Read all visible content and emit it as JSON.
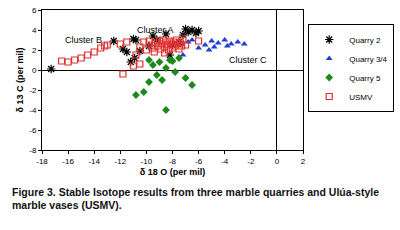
{
  "chart_data": {
    "type": "scatter",
    "caption": "Figure 3.  Stable Isotope results from three marble quarries and Ulúa-style marble vases (USMV).",
    "x_label": "δ 18 O (per mil)",
    "y_label": "δ 13 C (per mil)",
    "xlim": [
      -18,
      2
    ],
    "xticks": [
      -18,
      -16,
      -14,
      -12,
      -10,
      -8,
      -6,
      -4,
      -2,
      0,
      2
    ],
    "ylim": [
      -8,
      6
    ],
    "yticks": [
      -8,
      -6,
      -4,
      -2,
      0,
      2,
      4,
      6
    ],
    "grid": false,
    "legend": "right",
    "annotations": [
      {
        "text": "Cluster A",
        "x": -9.3,
        "y": 4.0
      },
      {
        "text": "Cluster B",
        "x": -14.8,
        "y": 3.0
      },
      {
        "text": "Cluster C",
        "x": -2.2,
        "y": 1.0
      }
    ],
    "series": [
      {
        "name": "Quarry 2",
        "color": "#000000",
        "marker": "asterisk",
        "x": [
          -17.3,
          -12.5,
          -11.8,
          -11.5,
          -11.2,
          -10.9,
          -10.5,
          -10.8,
          -9.5,
          -9.2,
          -8.5,
          -8.0,
          -7.5,
          -7.2,
          -6.8,
          -6.5,
          -6.2,
          -6.0,
          -8.2,
          -9.8,
          -11.0,
          -7.0
        ],
        "y": [
          0.1,
          2.9,
          2.1,
          1.8,
          0.8,
          1.2,
          1.9,
          3.0,
          3.4,
          3.0,
          3.6,
          2.5,
          2.8,
          3.5,
          3.8,
          4.0,
          3.7,
          3.9,
          1.5,
          2.4,
          3.1,
          4.1
        ]
      },
      {
        "name": "Quarry 3/4",
        "color": "#1f3fd0",
        "marker": "triangle",
        "x": [
          -6.5,
          -5.5,
          -5.0,
          -4.5,
          -4.0,
          -3.5,
          -3.0,
          -2.5,
          -6.0,
          -5.2,
          -7.2,
          -4.8,
          -3.8,
          -6.8
        ],
        "y": [
          3.0,
          2.5,
          2.9,
          2.7,
          3.0,
          2.6,
          2.8,
          2.6,
          2.2,
          2.0,
          1.5,
          2.3,
          2.4,
          2.8
        ]
      },
      {
        "name": "Quarry 5",
        "color": "#1a8a1a",
        "marker": "diamond",
        "x": [
          -9.8,
          -9.5,
          -9.0,
          -8.5,
          -8.0,
          -7.5,
          -9.2,
          -9.8,
          -10.2,
          -10.8,
          -8.5,
          -7.0,
          -6.5,
          -8.8,
          -7.8,
          -8.2
        ],
        "y": [
          1.0,
          0.5,
          0.8,
          0.2,
          0.9,
          1.2,
          -0.5,
          -1.2,
          -2.2,
          -2.5,
          -4.0,
          -0.8,
          -1.5,
          -1.0,
          -0.2,
          1.0
        ]
      },
      {
        "name": "USMV",
        "color": "#e03030",
        "marker": "square-open",
        "x": [
          -16.5,
          -16.0,
          -15.5,
          -15.0,
          -14.5,
          -14.0,
          -13.5,
          -13.2,
          -13.0,
          -12.0,
          -11.5,
          -11.8,
          -11.0,
          -10.5,
          -10.5,
          -10.2,
          -10.0,
          -9.8,
          -9.6,
          -9.5,
          -9.3,
          -9.1,
          -9.0,
          -8.9,
          -8.8,
          -8.7,
          -8.6,
          -8.5,
          -8.4,
          -8.3,
          -8.2,
          -8.1,
          -8.0,
          -7.9,
          -7.8,
          -7.7,
          -7.6,
          -7.5,
          -7.4,
          -7.3,
          -7.2,
          -9.4,
          -8.6,
          -7.0,
          -6.0,
          -10.8
        ],
        "y": [
          0.9,
          0.8,
          1.0,
          1.2,
          1.5,
          1.8,
          2.2,
          2.4,
          2.5,
          2.6,
          2.8,
          -0.4,
          0.4,
          0.6,
          2.3,
          2.8,
          2.0,
          2.9,
          2.5,
          2.2,
          2.7,
          2.4,
          2.9,
          2.1,
          2.6,
          3.0,
          2.3,
          2.8,
          2.5,
          2.0,
          2.9,
          2.6,
          2.2,
          2.8,
          2.4,
          3.0,
          2.6,
          2.1,
          2.7,
          2.4,
          3.1,
          1.8,
          1.7,
          2.5,
          2.9,
          1.5
        ]
      }
    ]
  }
}
